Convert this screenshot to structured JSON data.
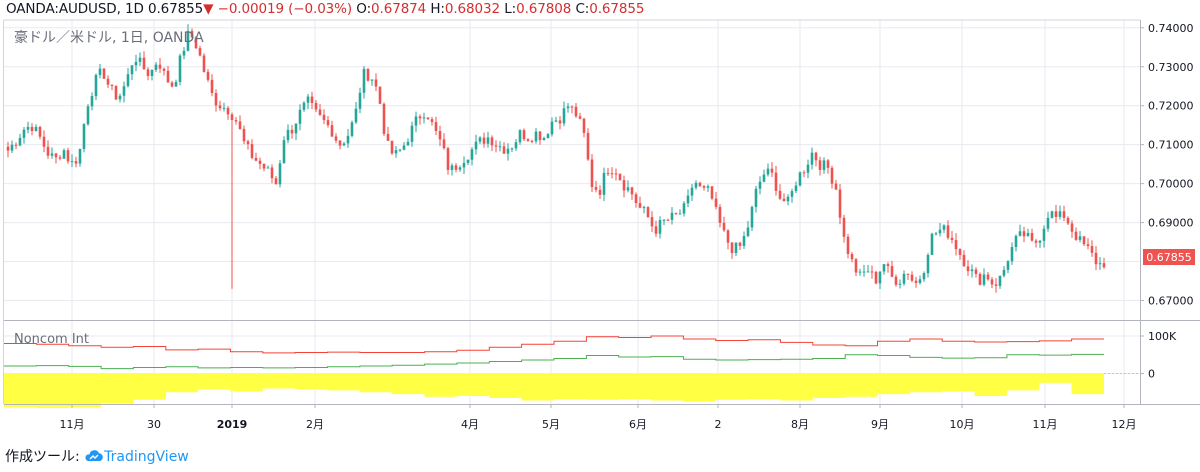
{
  "header": {
    "symbol": "OANDA:AUDUSD, 1D",
    "price": "0.67855",
    "change_arrow": "▼",
    "change": "−0.00019 (−0.03%)",
    "o_label": "O:",
    "o_value": "0.67874",
    "h_label": "H:",
    "h_value": "0.68032",
    "l_label": "L:",
    "l_value": "0.67808",
    "c_label": "C:",
    "c_value": "0.67855"
  },
  "pane1_title": "豪ドル／米ドル, 1日, OANDA",
  "pane2_title": "Noncom Int",
  "last_price_label": "0.67855",
  "footer": {
    "prefix": "作成ツール:",
    "brand": "TradingView"
  },
  "colors": {
    "up": "#26a69a",
    "down": "#ef5350",
    "red_line": "#f44336",
    "green_line": "#4caf50",
    "fill": "#ffff44",
    "grid": "#e8eaf0"
  },
  "chart_data": [
    {
      "type": "candlestick",
      "title": "豪ドル／米ドル, 1日, OANDA",
      "y_ticks": [
        "0.74000",
        "0.73000",
        "0.72000",
        "0.71000",
        "0.70000",
        "0.69000",
        "0.67000"
      ],
      "ylim": [
        0.665,
        0.742
      ],
      "x_ticks": [
        "11月",
        "30",
        "2019",
        "2月",
        "4月",
        "5月",
        "6月",
        "2",
        "8月",
        "9月",
        "10月",
        "11月",
        "12月"
      ],
      "close_path": [
        0.7085,
        0.711,
        0.714,
        0.715,
        0.712,
        0.708,
        0.706,
        0.709,
        0.705,
        0.707,
        0.72,
        0.726,
        0.729,
        0.724,
        0.722,
        0.726,
        0.733,
        0.73,
        0.728,
        0.732,
        0.727,
        0.725,
        0.733,
        0.739,
        0.735,
        0.728,
        0.722,
        0.72,
        0.719,
        0.716,
        0.71,
        0.707,
        0.705,
        0.703,
        0.7,
        0.712,
        0.714,
        0.718,
        0.721,
        0.718,
        0.716,
        0.714,
        0.71,
        0.712,
        0.717,
        0.728,
        0.728,
        0.723,
        0.71,
        0.707,
        0.709,
        0.713,
        0.717,
        0.719,
        0.714,
        0.71,
        0.703,
        0.705,
        0.707,
        0.709,
        0.711,
        0.712,
        0.71,
        0.709,
        0.71,
        0.713,
        0.712,
        0.713,
        0.712,
        0.716,
        0.717,
        0.72,
        0.718,
        0.713,
        0.7,
        0.698,
        0.704,
        0.704,
        0.7,
        0.698,
        0.694,
        0.692,
        0.688,
        0.69,
        0.691,
        0.692,
        0.694,
        0.701,
        0.698,
        0.698,
        0.691,
        0.686,
        0.683,
        0.684,
        0.69,
        0.699,
        0.703,
        0.702,
        0.696,
        0.695,
        0.701,
        0.704,
        0.708,
        0.705,
        0.704,
        0.699,
        0.686,
        0.68,
        0.676,
        0.678,
        0.675,
        0.68,
        0.676,
        0.675,
        0.678,
        0.674,
        0.677,
        0.686,
        0.688,
        0.688,
        0.685,
        0.681,
        0.678,
        0.675,
        0.677,
        0.674,
        0.676,
        0.682,
        0.686,
        0.687,
        0.684,
        0.687,
        0.693,
        0.691,
        0.692,
        0.688,
        0.685,
        0.683,
        0.68,
        0.6786
      ],
      "low_wick_min": 0.673,
      "last_close": 0.67855
    },
    {
      "type": "line",
      "title": "Noncom Int",
      "y_ticks": [
        "100K",
        "0"
      ],
      "series": [
        {
          "color": "red",
          "values": [
            80000,
            78000,
            74000,
            70000,
            72000,
            63000,
            65000,
            58000,
            55000,
            56000,
            57000,
            56000,
            56000,
            58000,
            62000,
            70000,
            78000,
            86000,
            98000,
            96000,
            100000,
            92000,
            88000,
            90000,
            83000,
            76000,
            74000,
            86000,
            92000,
            86000,
            84000,
            85000,
            87000,
            92000
          ]
        },
        {
          "color": "green",
          "values": [
            20000,
            21000,
            19000,
            13000,
            16000,
            18000,
            15000,
            16000,
            15000,
            16000,
            18000,
            20000,
            22000,
            25000,
            28000,
            32000,
            36000,
            40000,
            48000,
            44000,
            45000,
            38000,
            36000,
            37000,
            38000,
            40000,
            50000,
            48000,
            43000,
            41000,
            42000,
            50000,
            49000,
            51000
          ]
        },
        {
          "color": "yellow-fill",
          "values": [
            -90000,
            -92000,
            -90000,
            -80000,
            -70000,
            -50000,
            -42000,
            -48000,
            -40000,
            -42000,
            -45000,
            -50000,
            -55000,
            -62000,
            -60000,
            -65000,
            -72000,
            -68000,
            -70000,
            -68000,
            -72000,
            -75000,
            -70000,
            -68000,
            -72000,
            -65000,
            -62000,
            -55000,
            -50000,
            -48000,
            -60000,
            -45000,
            -25000,
            -55000
          ]
        }
      ]
    }
  ]
}
